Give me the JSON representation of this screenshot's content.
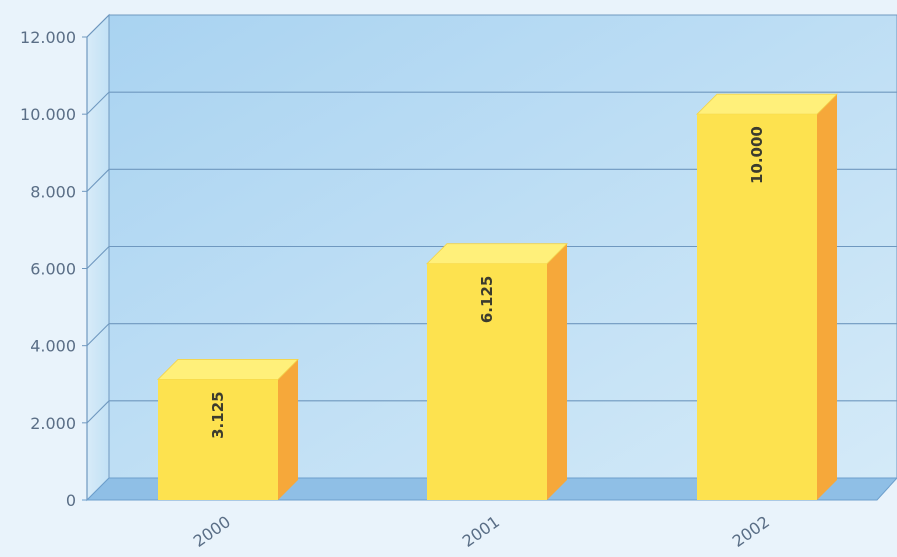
{
  "chart_data": {
    "type": "bar",
    "categories": [
      "2000",
      "2001",
      "2002"
    ],
    "values": [
      3125,
      6125,
      10000
    ],
    "data_labels": [
      "3.125",
      "6.125",
      "10.000"
    ],
    "ylim": [
      0,
      12000
    ],
    "yticks": [
      0,
      2000,
      4000,
      6000,
      8000,
      10000,
      12000
    ],
    "ytick_labels": [
      "0",
      "2.000",
      "4.000",
      "6.000",
      "8.000",
      "10.000",
      "12.000"
    ],
    "grid": true,
    "style": "3d",
    "colors": {
      "bar_front": "#fde24f",
      "bar_top": "#fff07a",
      "bar_side": "#f6a83a",
      "wall": "#b9dcf3",
      "floor": "#8fbfe6",
      "grid": "#6f98bf"
    }
  }
}
